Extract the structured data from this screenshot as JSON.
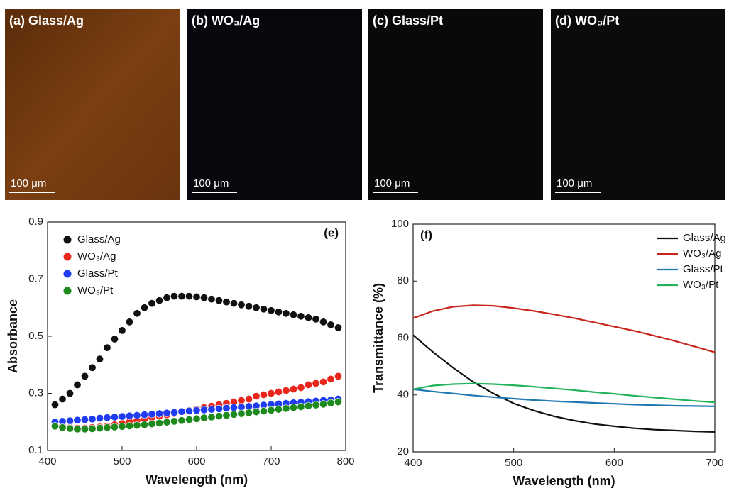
{
  "panels": [
    {
      "label": "(a) Glass/Ag",
      "scale": "100 μm"
    },
    {
      "label": "(b) WO₃/Ag",
      "scale": "100 μm"
    },
    {
      "label": "(c) Glass/Pt",
      "scale": "100 μm"
    },
    {
      "label": "(d) WO₃/Pt",
      "scale": "100 μm"
    }
  ],
  "chart_data": [
    {
      "type": "scatter",
      "annotation": "(e)",
      "x_label": "Wavelength (nm)",
      "y_label": "Absorbance",
      "x": [
        410,
        420,
        430,
        440,
        450,
        460,
        470,
        480,
        490,
        500,
        510,
        520,
        530,
        540,
        550,
        560,
        570,
        580,
        590,
        600,
        610,
        620,
        630,
        640,
        650,
        660,
        670,
        680,
        690,
        700,
        710,
        720,
        730,
        740,
        750,
        760,
        770,
        780,
        790
      ],
      "series": [
        {
          "name": "Glass/Ag",
          "color": "#111111",
          "values": [
            0.26,
            0.28,
            0.3,
            0.33,
            0.36,
            0.39,
            0.42,
            0.46,
            0.49,
            0.52,
            0.55,
            0.58,
            0.6,
            0.615,
            0.625,
            0.635,
            0.64,
            0.64,
            0.64,
            0.638,
            0.635,
            0.63,
            0.625,
            0.62,
            0.615,
            0.61,
            0.605,
            0.6,
            0.595,
            0.59,
            0.585,
            0.58,
            0.575,
            0.57,
            0.565,
            0.56,
            0.55,
            0.54,
            0.53
          ]
        },
        {
          "name": "WO₃/Ag",
          "color": "#e8261c",
          "values": [
            0.19,
            0.185,
            0.18,
            0.178,
            0.178,
            0.18,
            0.182,
            0.185,
            0.19,
            0.195,
            0.2,
            0.205,
            0.21,
            0.215,
            0.22,
            0.225,
            0.23,
            0.235,
            0.24,
            0.245,
            0.25,
            0.255,
            0.26,
            0.265,
            0.27,
            0.275,
            0.28,
            0.29,
            0.295,
            0.3,
            0.305,
            0.31,
            0.315,
            0.32,
            0.33,
            0.335,
            0.34,
            0.35,
            0.36
          ]
        },
        {
          "name": "Glass/Pt",
          "color": "#1f3cf0",
          "values": [
            0.2,
            0.202,
            0.204,
            0.206,
            0.208,
            0.21,
            0.213,
            0.215,
            0.217,
            0.219,
            0.221,
            0.223,
            0.225,
            0.227,
            0.229,
            0.231,
            0.233,
            0.236,
            0.238,
            0.24,
            0.242,
            0.244,
            0.246,
            0.248,
            0.25,
            0.252,
            0.254,
            0.256,
            0.259,
            0.261,
            0.263,
            0.265,
            0.267,
            0.269,
            0.271,
            0.273,
            0.275,
            0.277,
            0.28
          ]
        },
        {
          "name": "WO₃/Pt",
          "color": "#1e8a1e",
          "values": [
            0.185,
            0.18,
            0.177,
            0.175,
            0.175,
            0.176,
            0.178,
            0.18,
            0.182,
            0.184,
            0.186,
            0.188,
            0.19,
            0.193,
            0.196,
            0.199,
            0.202,
            0.205,
            0.208,
            0.211,
            0.214,
            0.217,
            0.22,
            0.223,
            0.226,
            0.229,
            0.232,
            0.235,
            0.238,
            0.241,
            0.244,
            0.247,
            0.25,
            0.253,
            0.256,
            0.259,
            0.262,
            0.266,
            0.27
          ]
        }
      ],
      "xlim": [
        400,
        800
      ],
      "xticks": [
        400,
        500,
        600,
        700,
        800
      ],
      "ylim": [
        0.1,
        0.9
      ],
      "yticks": [
        0.1,
        0.3,
        0.5,
        0.7,
        0.9
      ],
      "legend": "top-left"
    },
    {
      "type": "line",
      "annotation": "(f)",
      "x_label": "Wavelength (nm)",
      "y_label": "Transmittance (%)",
      "x": [
        400,
        420,
        440,
        460,
        480,
        500,
        520,
        540,
        560,
        580,
        600,
        620,
        640,
        660,
        680,
        700
      ],
      "series": [
        {
          "name": "Glass/Ag",
          "color": "#111111",
          "values": [
            61,
            55,
            49.5,
            44.5,
            40.5,
            37,
            34.5,
            32.5,
            31,
            29.8,
            29,
            28.3,
            27.8,
            27.5,
            27.2,
            27
          ]
        },
        {
          "name": "WO₃/Ag",
          "color": "#c8261c",
          "values": [
            67,
            69.5,
            71,
            71.5,
            71.3,
            70.5,
            69.5,
            68.3,
            67,
            65.5,
            64,
            62.5,
            60.8,
            59,
            57,
            55
          ]
        },
        {
          "name": "Glass/Pt",
          "color": "#1f78b4",
          "values": [
            42,
            41.2,
            40.5,
            39.8,
            39.2,
            38.7,
            38.2,
            37.8,
            37.5,
            37.2,
            36.9,
            36.6,
            36.4,
            36.2,
            36.1,
            36
          ]
        },
        {
          "name": "WO₃/Pt",
          "color": "#22b35a",
          "values": [
            42,
            43.3,
            43.8,
            44,
            43.8,
            43.4,
            42.9,
            42.3,
            41.7,
            41,
            40.4,
            39.7,
            39.1,
            38.5,
            37.9,
            37.4
          ]
        }
      ],
      "xlim": [
        400,
        700
      ],
      "xticks": [
        400,
        500,
        600,
        700
      ],
      "ylim": [
        20,
        100
      ],
      "yticks": [
        20,
        40,
        60,
        80,
        100
      ],
      "legend": "top-right"
    }
  ]
}
